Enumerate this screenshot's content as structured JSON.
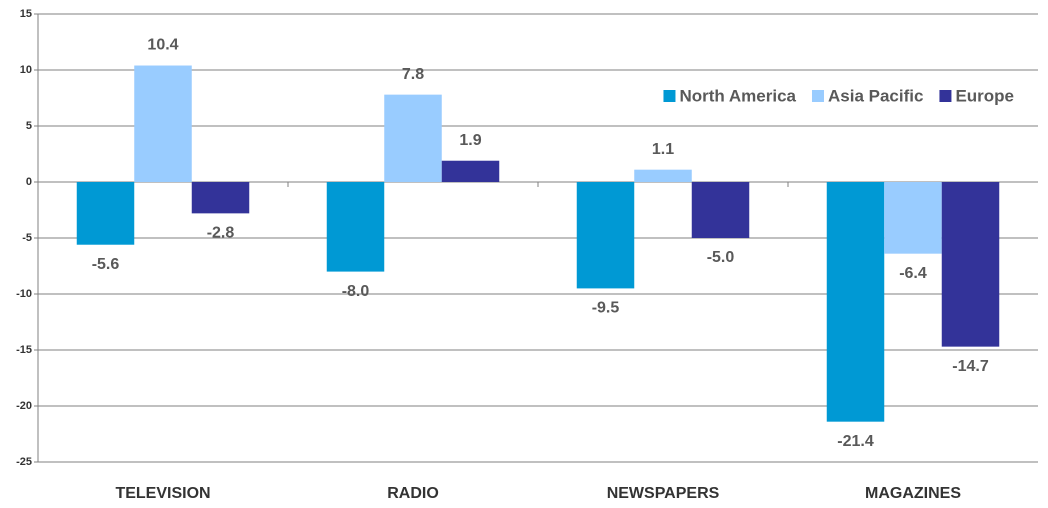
{
  "chart_data": {
    "type": "bar",
    "categories": [
      "TELEVISION",
      "RADIO",
      "NEWSPAPERS",
      "MAGAZINES"
    ],
    "series": [
      {
        "name": "North America",
        "color": "#0099d4",
        "values": [
          -5.6,
          -8.0,
          -9.5,
          -21.4
        ],
        "value_labels": [
          "-5.6",
          "-8.0",
          "-9.5",
          "-21.4"
        ]
      },
      {
        "name": "Asia Pacific",
        "color": "#99ccff",
        "values": [
          10.4,
          7.8,
          1.1,
          -6.4
        ],
        "value_labels": [
          "10.4",
          "7.8",
          "1.1",
          "-6.4"
        ]
      },
      {
        "name": "Europe",
        "color": "#333399",
        "values": [
          -2.8,
          1.9,
          -5.0,
          -14.7
        ],
        "value_labels": [
          "-2.8",
          "1.9",
          "-5.0",
          "-14.7"
        ]
      }
    ],
    "ylim": [
      -25,
      15
    ],
    "yticks": [
      -25,
      -20,
      -15,
      -10,
      -5,
      0,
      5,
      10,
      15
    ],
    "grid": true,
    "legend": "top-right"
  }
}
